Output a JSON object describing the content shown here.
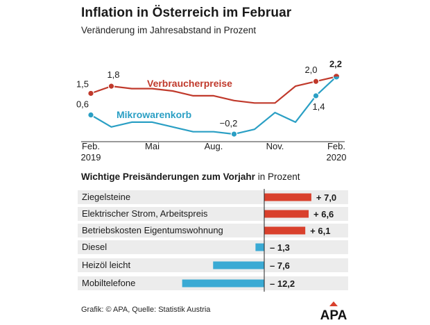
{
  "header": {
    "title": "Inflation in Österreich im Februar",
    "subtitle": "Veränderung im Jahresabstand in Prozent"
  },
  "chart_data": [
    {
      "type": "line",
      "title": "Inflation in Österreich im Februar",
      "subtitle": "Veränderung im Jahresabstand in Prozent",
      "x": [
        "Feb. 2019",
        "Mär. 2019",
        "Apr. 2019",
        "Mai 2019",
        "Jun. 2019",
        "Jul. 2019",
        "Aug. 2019",
        "Sep. 2019",
        "Okt. 2019",
        "Nov. 2019",
        "Dez. 2019",
        "Jan. 2020",
        "Feb. 2020"
      ],
      "x_tick_labels": [
        {
          "index": 0,
          "line1": "Feb.",
          "line2": "2019"
        },
        {
          "index": 3,
          "line1": "Mai",
          "line2": ""
        },
        {
          "index": 6,
          "line1": "Aug.",
          "line2": ""
        },
        {
          "index": 9,
          "line1": "Nov.",
          "line2": ""
        },
        {
          "index": 12,
          "line1": "Feb.",
          "line2": "2020"
        }
      ],
      "ylim": [
        -0.4,
        2.5
      ],
      "series": [
        {
          "name": "Verbraucherpreise",
          "color": "#c0392b",
          "values": [
            1.5,
            1.8,
            1.7,
            1.7,
            1.6,
            1.4,
            1.4,
            1.2,
            1.1,
            1.1,
            1.8,
            2.0,
            2.2
          ],
          "labels": [
            {
              "index": 0,
              "text": "1,5"
            },
            {
              "index": 1,
              "text": "1,8"
            },
            {
              "index": 11,
              "text": "2,0"
            },
            {
              "index": 12,
              "text": "2,2"
            }
          ],
          "marker_indices": [
            0,
            1,
            11,
            12
          ]
        },
        {
          "name": "Mikrowarenkorb",
          "color": "#2a9fc4",
          "values": [
            0.6,
            0.1,
            0.3,
            0.3,
            0.1,
            -0.1,
            -0.1,
            -0.2,
            0.0,
            0.7,
            0.3,
            1.4,
            2.2
          ],
          "labels": [
            {
              "index": 0,
              "text": "0,6"
            },
            {
              "index": 7,
              "text": "−0,2"
            },
            {
              "index": 11,
              "text": "1,4"
            }
          ],
          "marker_indices": [
            0,
            7,
            11
          ]
        }
      ]
    },
    {
      "type": "bar",
      "title": "Wichtige Preisänderungen zum Vorjahr",
      "unit_suffix": "in Prozent",
      "categories": [
        "Ziegelsteine",
        "Elektrischer Strom, Arbeitspreis",
        "Betriebskosten Eigentumswohnung",
        "Diesel",
        "Heizöl leicht",
        "Mobiltelefone"
      ],
      "values": [
        7.0,
        6.6,
        6.1,
        -1.3,
        -7.6,
        -12.2
      ],
      "value_labels": [
        "+ 7,0",
        "+ 6,6",
        "+ 6,1",
        "– 1,3",
        "– 7,6",
        "– 12,2"
      ],
      "positive_color": "#d9402c",
      "negative_color": "#3aaad4"
    }
  ],
  "footer": {
    "credit": "Grafik: © APA, Quelle: Statistik Austria",
    "logo_text": "APA"
  }
}
